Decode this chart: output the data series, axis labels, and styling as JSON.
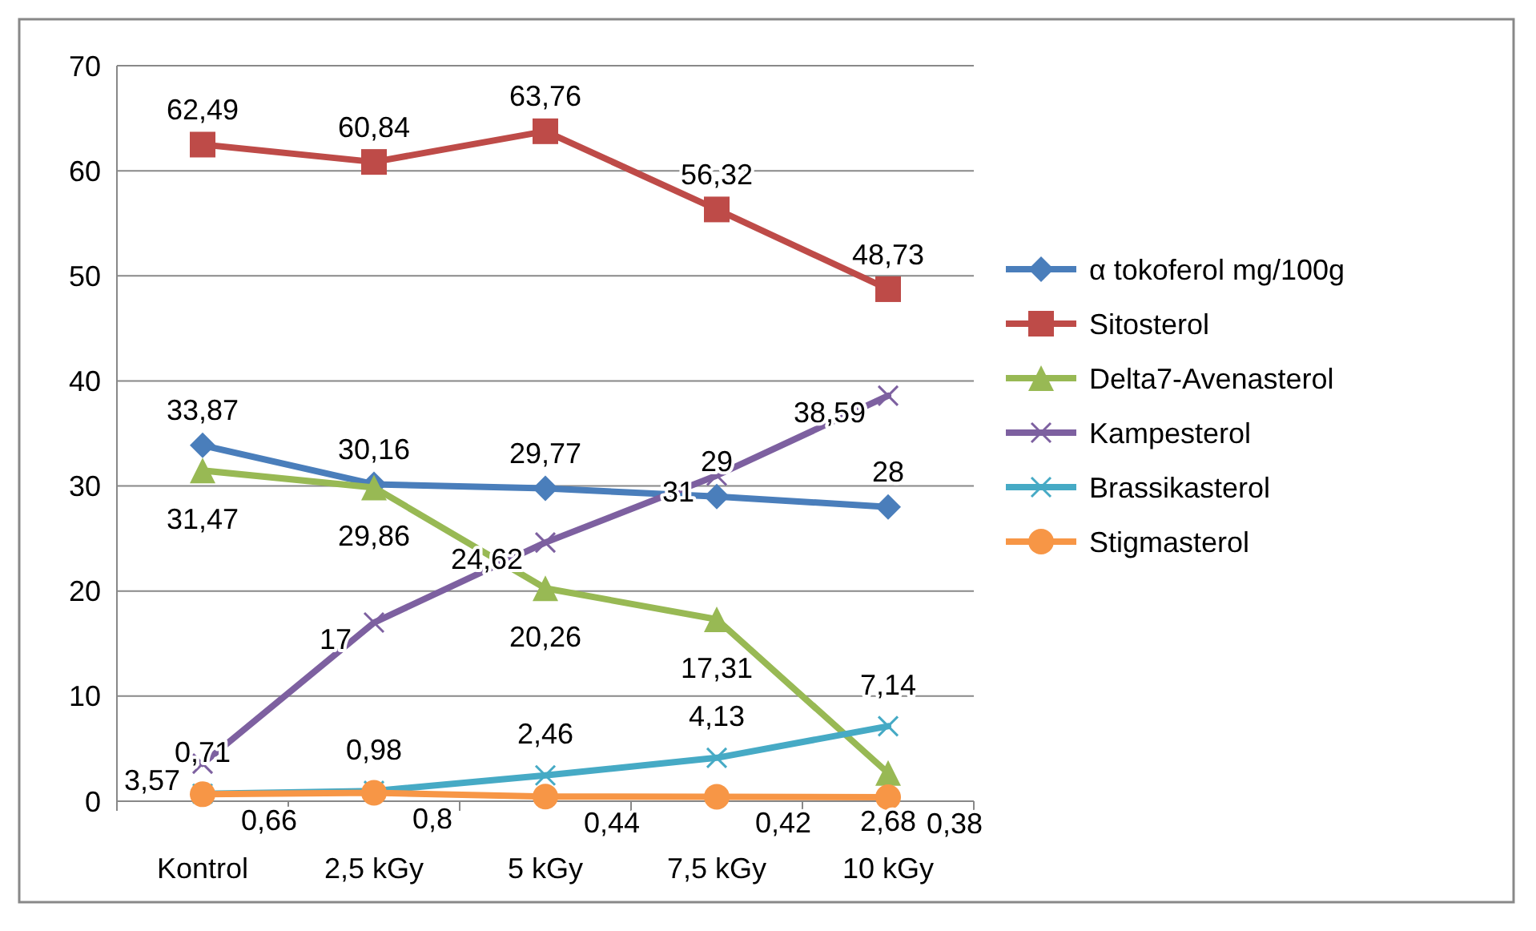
{
  "chart_data": {
    "type": "line",
    "categories": [
      "Kontrol",
      "2,5 kGy",
      "5 kGy",
      "7,5 kGy",
      "10 kGy"
    ],
    "ylim": [
      0,
      70
    ],
    "yticks": [
      0,
      10,
      20,
      30,
      40,
      50,
      60,
      70
    ],
    "grid": "y",
    "legend": "right",
    "series": [
      {
        "name": "α tokoferol mg/100g",
        "color": "#4a7ebb",
        "marker": "diamond",
        "values": [
          33.87,
          30.16,
          29.77,
          29,
          28
        ],
        "value_labels": [
          "33,87",
          "30,16",
          "29,77",
          "29",
          "28"
        ]
      },
      {
        "name": "Sitosterol",
        "color": "#be4b48",
        "marker": "square",
        "values": [
          62.49,
          60.84,
          63.76,
          56.32,
          48.73
        ],
        "value_labels": [
          "62,49",
          "60,84",
          "63,76",
          "56,32",
          "48,73"
        ]
      },
      {
        "name": "Delta7-Avenasterol",
        "color": "#98b954",
        "marker": "triangle",
        "values": [
          31.47,
          29.86,
          20.26,
          17.31,
          2.68
        ],
        "value_labels": [
          "31,47",
          "29,86",
          "20,26",
          "17,31",
          "2,68"
        ]
      },
      {
        "name": "Kampesterol",
        "color": "#7d60a0",
        "marker": "cross",
        "values": [
          3.57,
          17,
          24.62,
          31,
          38.59
        ],
        "value_labels": [
          "3,57",
          "17",
          "24,62",
          "31",
          "38,59"
        ]
      },
      {
        "name": "Brassikasterol",
        "color": "#46aac5",
        "marker": "cross",
        "values": [
          0.71,
          0.98,
          2.46,
          4.13,
          7.14
        ],
        "value_labels": [
          "0,71",
          "0,98",
          "2,46",
          "4,13",
          "7,14"
        ]
      },
      {
        "name": "Stigmasterol",
        "color": "#f79646",
        "marker": "circle",
        "values": [
          0.66,
          0.8,
          0.44,
          0.42,
          0.38
        ],
        "value_labels": [
          "0,66",
          "0,8",
          "0,44",
          "0,42",
          "0,38"
        ]
      }
    ]
  }
}
